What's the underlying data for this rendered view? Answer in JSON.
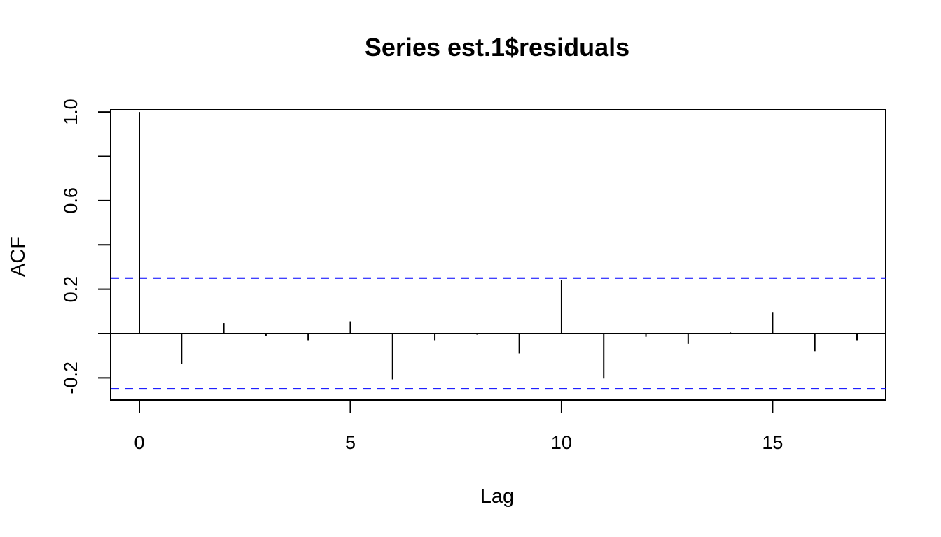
{
  "chart_data": {
    "type": "bar",
    "title": "Series  est.1$residuals",
    "xlabel": "Lag",
    "ylabel": "ACF",
    "xlim": [
      -0.68,
      17.68
    ],
    "ylim": [
      -0.3,
      1.01
    ],
    "x_ticks": [
      0,
      5,
      10,
      15
    ],
    "x_tick_labels": [
      "0",
      "5",
      "10",
      "15"
    ],
    "y_ticks": [
      -0.2,
      0.0,
      0.2,
      0.4,
      0.6,
      0.8,
      1.0
    ],
    "y_tick_labels": [
      "-0.2",
      "",
      "0.2",
      "",
      "0.6",
      "",
      "1.0"
    ],
    "lags": [
      0,
      1,
      2,
      3,
      4,
      5,
      6,
      7,
      8,
      9,
      10,
      11,
      12,
      13,
      14,
      15,
      16,
      17
    ],
    "acf": [
      1.0,
      -0.137,
      0.047,
      -0.01,
      -0.03,
      0.055,
      -0.207,
      -0.03,
      -0.005,
      -0.09,
      0.243,
      -0.203,
      -0.015,
      -0.047,
      0.005,
      0.097,
      -0.08,
      -0.03
    ],
    "confidence_bound": 0.25,
    "colors": {
      "stem": "#000000",
      "confidence_line": "#0000ff",
      "axis": "#000000"
    },
    "grid": false
  }
}
